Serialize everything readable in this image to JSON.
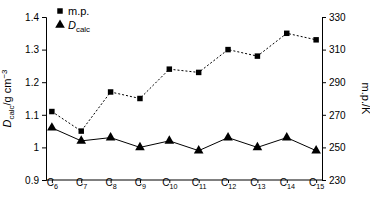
{
  "chart_data": {
    "type": "line",
    "categories": [
      "C6",
      "C7",
      "C8",
      "C9",
      "C10",
      "C11",
      "C12",
      "C13",
      "C14",
      "C15"
    ],
    "series": [
      {
        "name": "m.p.",
        "color": "#000000",
        "marker": "square",
        "line_style": "dotted",
        "axis": "y2",
        "values": [
          272,
          260,
          284,
          280,
          298,
          296,
          310,
          306,
          320,
          316
        ]
      },
      {
        "name": "Dcalc",
        "color": "#000000",
        "marker": "triangle",
        "line_style": "solid",
        "values": [
          1.06,
          1.02,
          1.03,
          1.0,
          1.02,
          0.99,
          1.03,
          1.0,
          1.03,
          0.99
        ]
      }
    ],
    "ylabel": "Dcalc/g cm−3",
    "y2label": "m.p./K",
    "ylim": [
      0.9,
      1.4
    ],
    "yticks": [
      0.9,
      1,
      1.1,
      1.2,
      1.3,
      1.4
    ],
    "y2lim": [
      230,
      330
    ],
    "y2ticks": [
      230,
      250,
      270,
      290,
      310,
      330
    ],
    "legend": "upper left"
  }
}
